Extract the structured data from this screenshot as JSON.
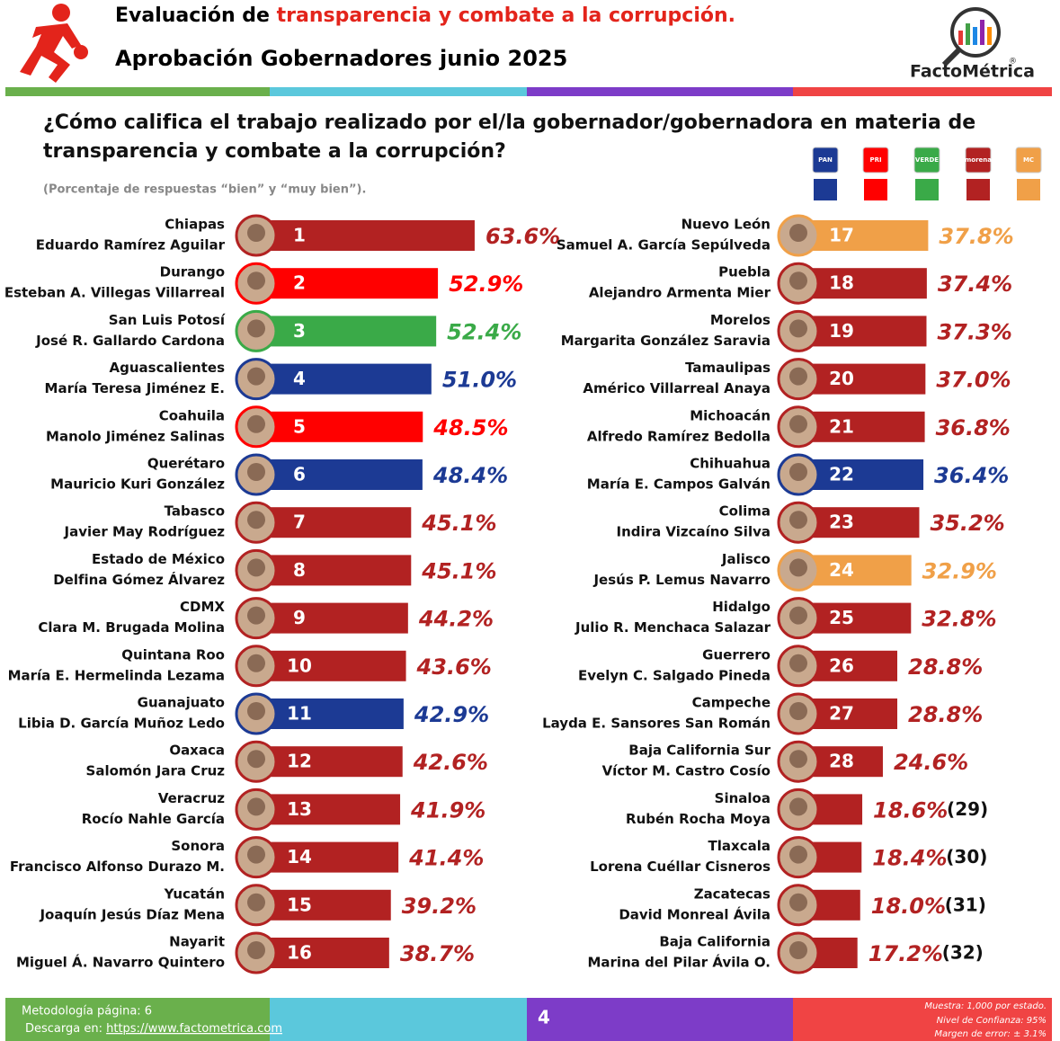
{
  "chart_data": {
    "type": "bar",
    "title_prefix": "Evaluación de ",
    "title_highlight": "transparencia y combate a la corrupción.",
    "subtitle": "Aprobación Gobernadores junio 2025",
    "brand": "FactoMétrica",
    "brand_mark": "®",
    "question": [
      "¿Cómo califica el trabajo realizado por el/la gobernador/gobernadora en materia de",
      "transparencia y combate a la corrupción?"
    ],
    "note": "(Porcentaje de respuestas “bien” y “muy bien”).",
    "legend": [
      {
        "name": "PAN",
        "color": "#1c3a94"
      },
      {
        "name": "PRI",
        "color": "#ff0000"
      },
      {
        "name": "VERDE",
        "color": "#3aaa48"
      },
      {
        "name": "morena",
        "color": "#b22222"
      },
      {
        "name": "MC",
        "color": "#f0a048"
      }
    ],
    "categories": [
      "Chiapas",
      "Durango",
      "San Luis Potosí",
      "Aguascalientes",
      "Coahuila",
      "Querétaro",
      "Tabasco",
      "Estado de México",
      "CDMX",
      "Quintana Roo",
      "Guanajuato",
      "Oaxaca",
      "Veracruz",
      "Sonora",
      "Yucatán",
      "Nayarit",
      "Nuevo León",
      "Puebla",
      "Morelos",
      "Tamaulipas",
      "Michoacán",
      "Chihuahua",
      "Colima",
      "Jalisco",
      "Hidalgo",
      "Guerrero",
      "Campeche",
      "Baja California Sur",
      "Sinaloa",
      "Tlaxcala",
      "Zacatecas",
      "Baja California"
    ],
    "governors": [
      "Eduardo Ramírez Aguilar",
      "Esteban A. Villegas Villarreal",
      "José R. Gallardo Cardona",
      "María Teresa Jiménez E.",
      "Manolo Jiménez Salinas",
      "Mauricio Kuri González",
      "Javier May Rodríguez",
      "Delfina Gómez Álvarez",
      "Clara M. Brugada Molina",
      "María E. Hermelinda Lezama",
      "Libia D. García Muñoz Ledo",
      "Salomón Jara Cruz",
      "Rocío Nahle García",
      "Francisco Alfonso Durazo M.",
      "Joaquín Jesús Díaz Mena",
      "Miguel Á. Navarro Quintero",
      "Samuel A. García Sepúlveda",
      "Alejandro Armenta Mier",
      "Margarita González Saravia",
      "Américo Villarreal Anaya",
      "Alfredo Ramírez Bedolla",
      "María E. Campos Galván",
      "Indira Vizcaíno Silva",
      "Jesús P. Lemus Navarro",
      "Julio R. Menchaca Salazar",
      "Evelyn C. Salgado Pineda",
      "Layda E. Sansores San Román",
      "Víctor M. Castro Cosío",
      "Rubén Rocha Moya",
      "Lorena Cuéllar Cisneros",
      "David Monreal Ávila",
      "Marina del Pilar Ávila O."
    ],
    "ranks": [
      "1",
      "2",
      "3",
      "4",
      "5",
      "6",
      "7",
      "8",
      "9",
      "10",
      "11",
      "12",
      "13",
      "14",
      "15",
      "16",
      "17",
      "18",
      "19",
      "20",
      "21",
      "22",
      "23",
      "24",
      "25",
      "26",
      "27",
      "28",
      "(29)",
      "(30)",
      "(31)",
      "(32)"
    ],
    "values": [
      63.6,
      52.9,
      52.4,
      51,
      48.5,
      48.4,
      45.1,
      45.1,
      44.2,
      43.6,
      42.9,
      42.6,
      41.9,
      41.4,
      39.2,
      38.7,
      37.8,
      37.4,
      37.3,
      37,
      36.8,
      36.4,
      35.2,
      32.9,
      32.8,
      28.8,
      28.8,
      24.6,
      18.6,
      18.4,
      18,
      17.2
    ],
    "value_labels": [
      "63.6%",
      "52.9%",
      "52.4%",
      "51.0%",
      "48.5%",
      "48.4%",
      "45.1%",
      "45.1%",
      "44.2%",
      "43.6%",
      "42.9%",
      "42.6%",
      "41.9%",
      "41.4%",
      "39.2%",
      "38.7%",
      "37.8%",
      "37.4%",
      "37.3%",
      "37.0%",
      "36.8%",
      "36.4%",
      "35.2%",
      "32.9%",
      "32.8%",
      "28.8%",
      "28.8%",
      "24.6%",
      "18.6%",
      "18.4%",
      "18.0%",
      "17.2%"
    ],
    "colors": [
      "#b22222",
      "#ff0000",
      "#3aaa48",
      "#1c3a94",
      "#ff0000",
      "#1c3a94",
      "#b22222",
      "#b22222",
      "#b22222",
      "#b22222",
      "#1c3a94",
      "#b22222",
      "#b22222",
      "#b22222",
      "#b22222",
      "#b22222",
      "#f0a048",
      "#b22222",
      "#b22222",
      "#b22222",
      "#b22222",
      "#1c3a94",
      "#b22222",
      "#f0a048",
      "#b22222",
      "#b22222",
      "#b22222",
      "#b22222",
      "#b22222",
      "#b22222",
      "#b22222",
      "#b22222"
    ]
  },
  "footer": {
    "methodology": "Metodología página: 6",
    "download": "Descarga en: ",
    "url": "https://www.factometrica.com",
    "page": "4",
    "sample": "Muestra:  1,000 por estado.",
    "confidence": "Nivel de Confianza: 95%",
    "error": "Margen de error: ± 3.1%"
  }
}
